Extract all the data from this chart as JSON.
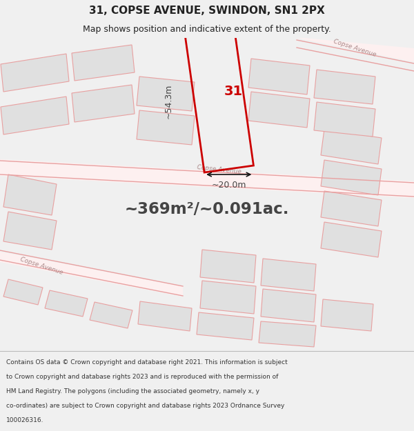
{
  "title_line1": "31, COPSE AVENUE, SWINDON, SN1 2PX",
  "title_line2": "Map shows position and indicative extent of the property.",
  "area_text": "~369m²/~0.091ac.",
  "width_label": "~20.0m",
  "height_label": "~54.3m",
  "property_number": "31",
  "footer_lines": [
    "Contains OS data © Crown copyright and database right 2021. This information is subject",
    "to Crown copyright and database rights 2023 and is reproduced with the permission of",
    "HM Land Registry. The polygons (including the associated geometry, namely x, y",
    "co-ordinates) are subject to Crown copyright and database rights 2023 Ordnance Survey",
    "100026316."
  ],
  "bg_color": "#f0f0f0",
  "map_bg": "#ffffff",
  "road_color": "#e8a0a0",
  "building_fill": "#e0e0e0",
  "building_outline": "#e8a0a0",
  "highlight_stroke": "#cc0000",
  "text_dark": "#222222",
  "area_color": "#444444",
  "road_label_color": "#aa8888",
  "dim_color": "#111111"
}
